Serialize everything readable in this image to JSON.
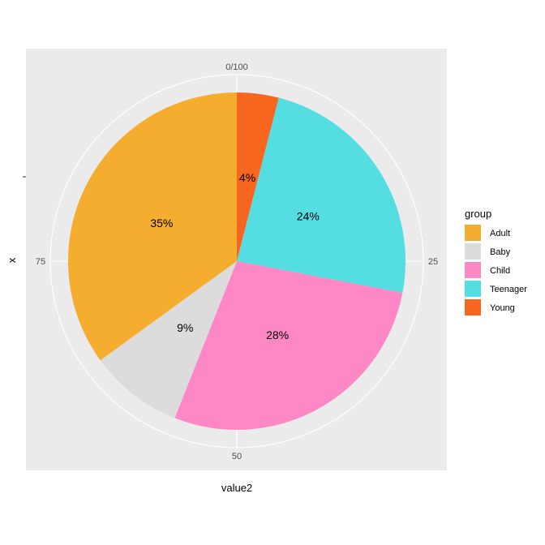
{
  "chart_data": {
    "type": "pie",
    "categories": [
      "Young",
      "Teenager",
      "Child",
      "Baby",
      "Adult"
    ],
    "values": [
      4,
      24,
      28,
      9,
      35
    ],
    "data_labels": [
      "4%",
      "24%",
      "28%",
      "9%",
      "35%"
    ],
    "colors": {
      "Adult": "#F5AD2F",
      "Baby": "#DCDCDC",
      "Child": "#FE88C5",
      "Teenager": "#55DEE1",
      "Young": "#F6661E"
    },
    "theta_ticks": [
      "0/100",
      "25",
      "50",
      "75"
    ],
    "theta_tick_values": [
      0,
      25,
      50,
      75
    ],
    "xlabel": "value2",
    "ylabel": "x",
    "legend": {
      "title": "group",
      "items": [
        "Adult",
        "Baby",
        "Child",
        "Teenager",
        "Young"
      ],
      "placement": "right"
    },
    "grid": true
  }
}
